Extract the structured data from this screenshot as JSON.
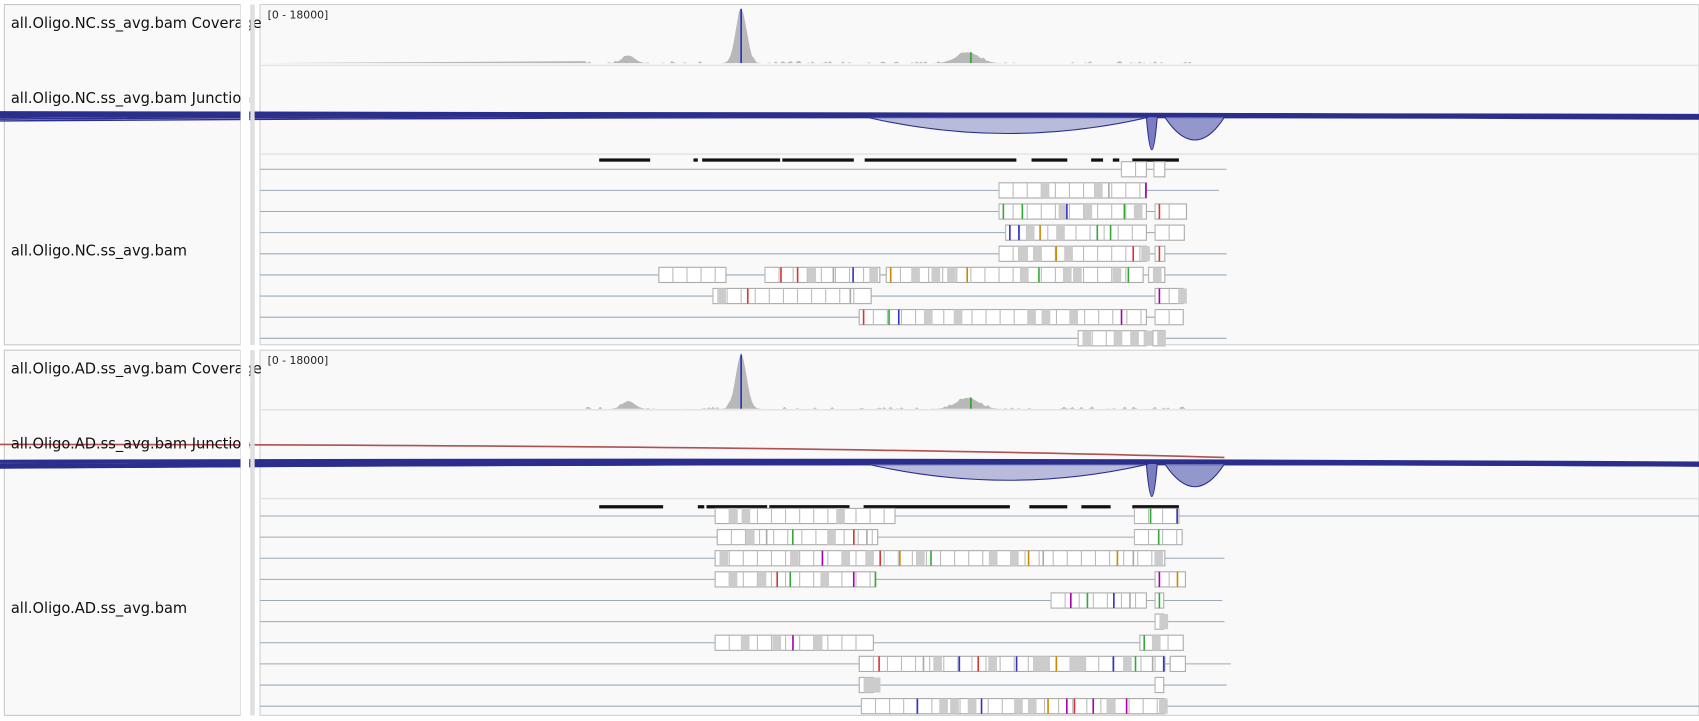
{
  "panels": [
    {
      "tracks": [
        {
          "name": "all.Oligo.NC.ss_avg.bam Coverage",
          "range": "[0 - 18000]"
        },
        {
          "name": "all.Oligo.NC.ss_avg.bam Junction"
        },
        {
          "name": "all.Oligo.NC.ss_avg.bam"
        }
      ]
    },
    {
      "tracks": [
        {
          "name": "all.Oligo.AD.ss_avg.bam Coverage",
          "range": "[0 - 18000]"
        },
        {
          "name": "all.Oligo.AD.ss_avg.bam Junction"
        },
        {
          "name": "all.Oligo.AD.ss_avg.bam"
        }
      ]
    }
  ]
}
